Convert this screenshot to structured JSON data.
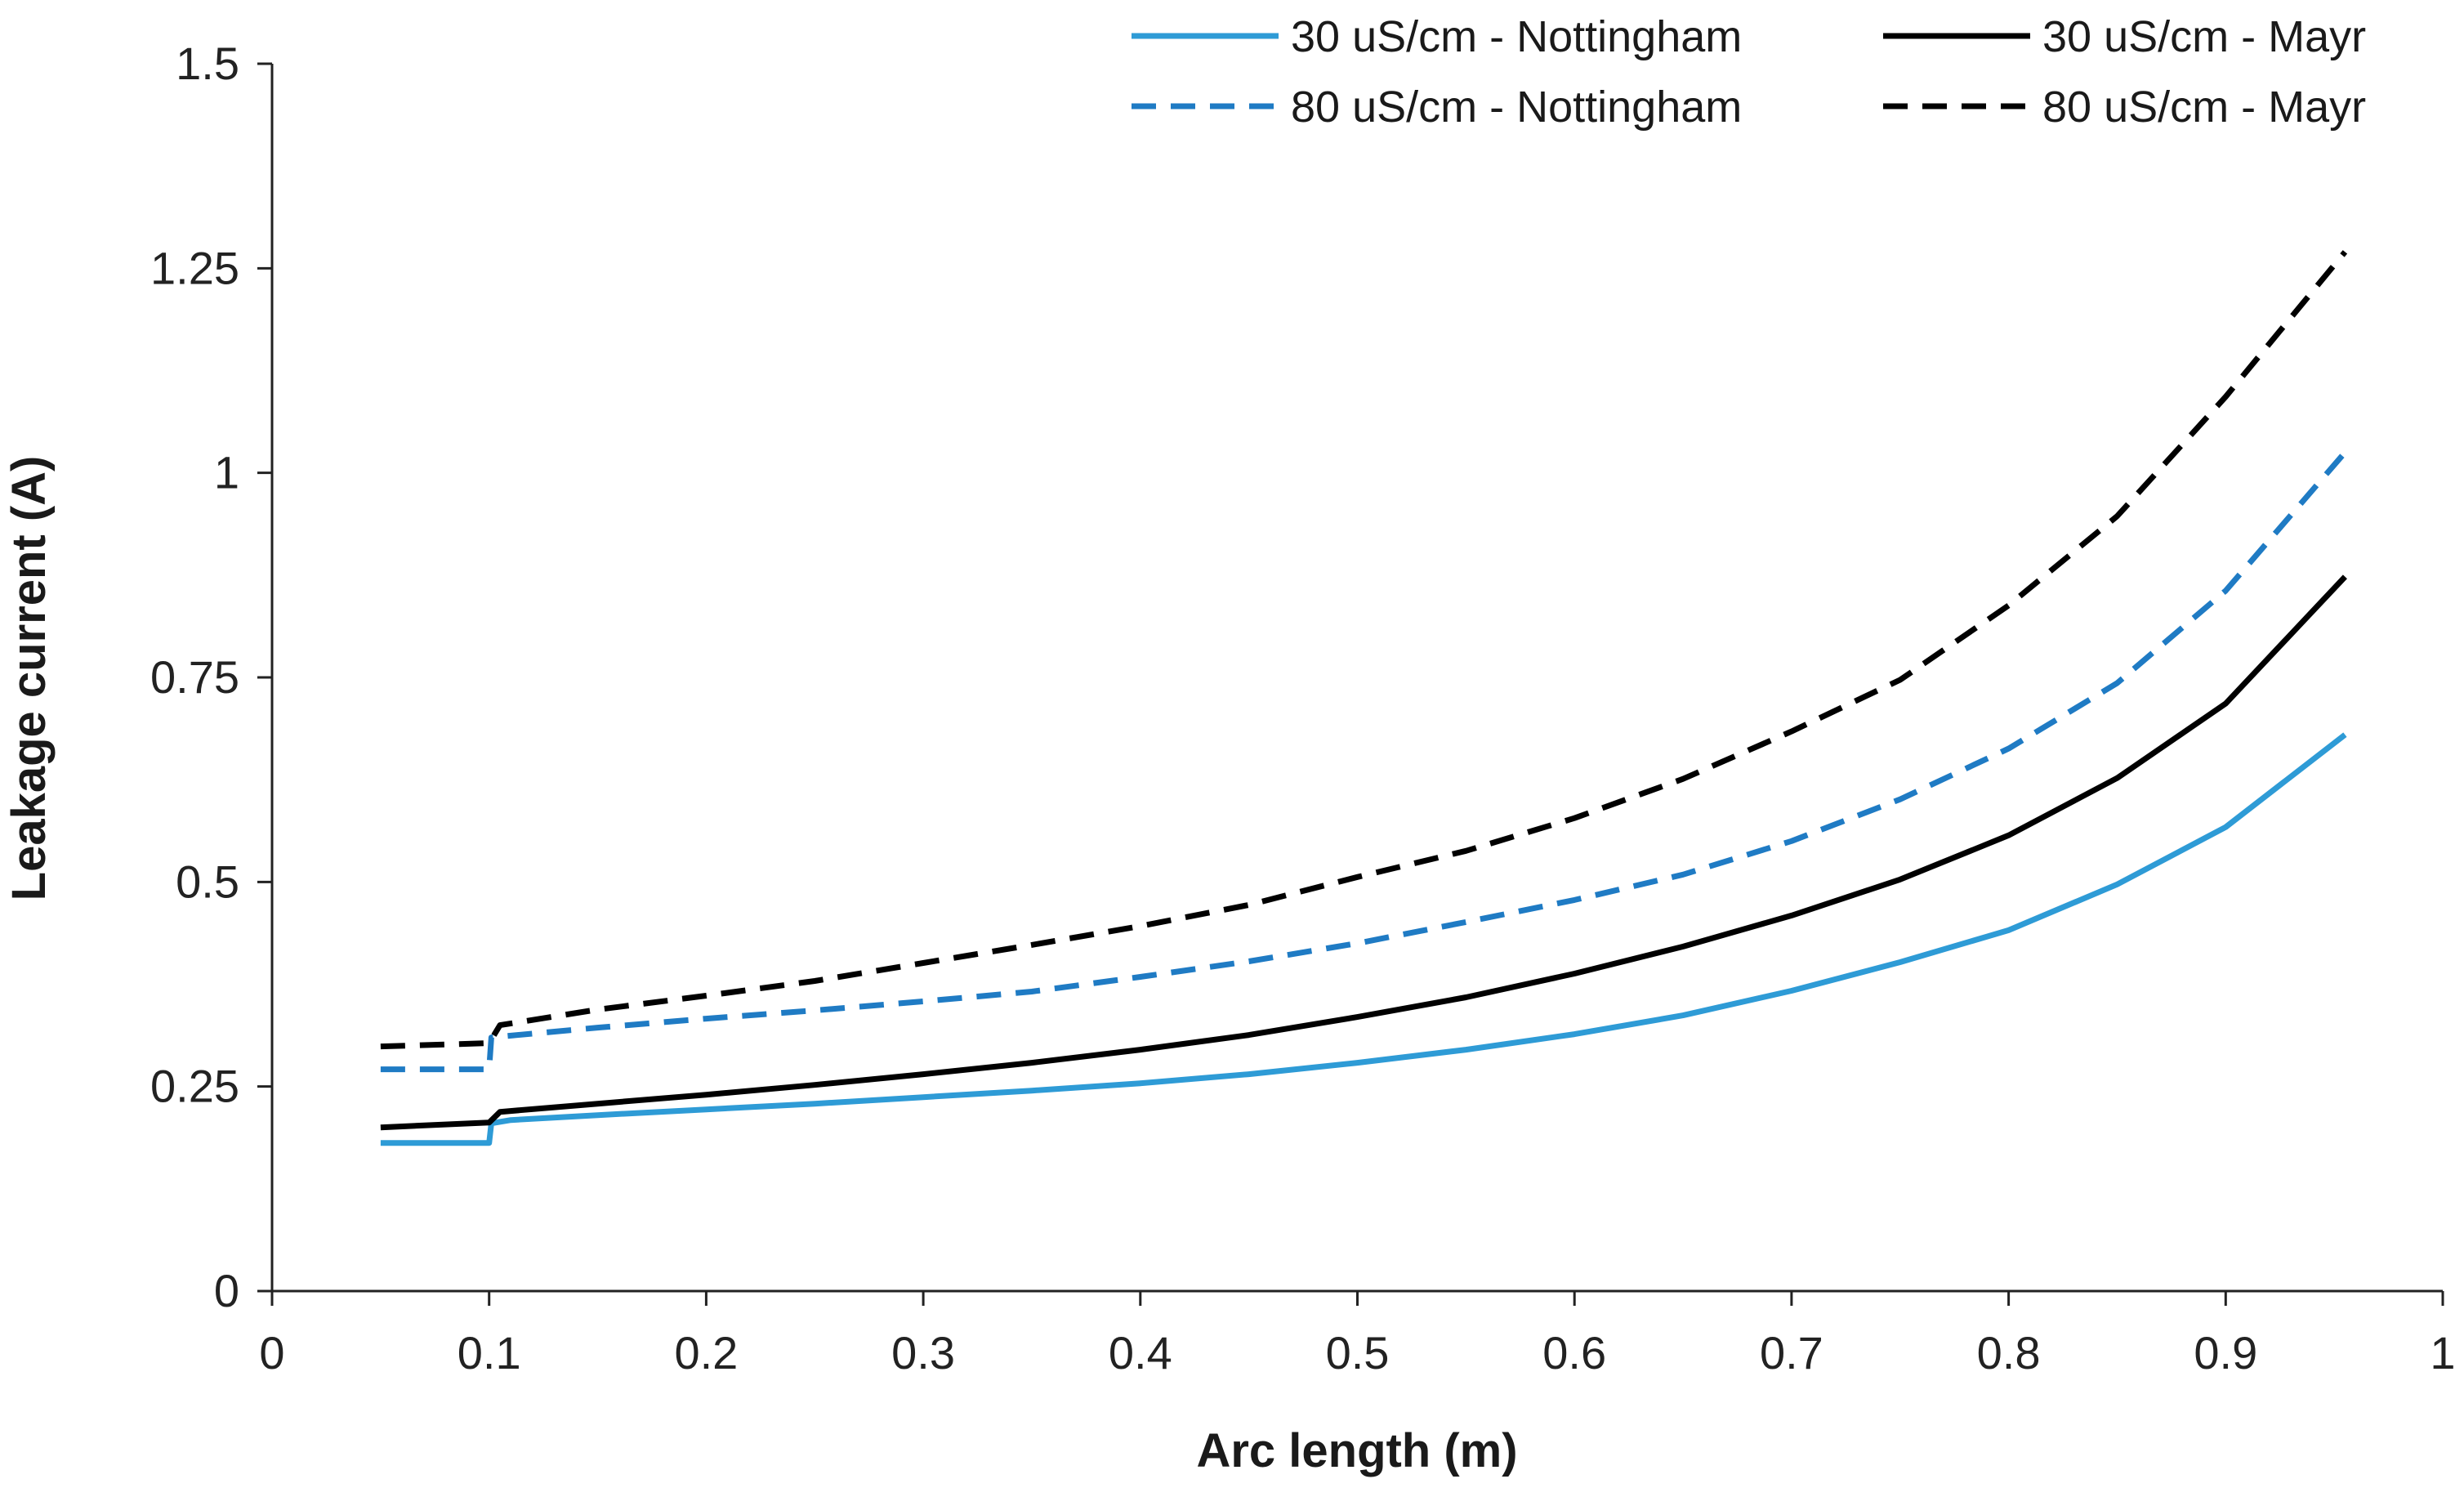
{
  "chart_data": {
    "type": "line",
    "title": "",
    "xlabel": "Arc length (m)",
    "ylabel": "Leakage current (A)",
    "xlim": [
      0,
      1
    ],
    "ylim": [
      0,
      1.5
    ],
    "x_ticks": [
      0,
      0.1,
      0.2,
      0.3,
      0.4,
      0.5,
      0.6,
      0.7,
      0.8,
      0.9,
      1
    ],
    "x_tick_labels": [
      "0",
      "0.1",
      "0.2",
      "0.3",
      "0.4",
      "0.5",
      "0.6",
      "0.7",
      "0.8",
      "0.9",
      "1"
    ],
    "y_ticks": [
      0,
      0.25,
      0.5,
      0.75,
      1,
      1.25,
      1.5
    ],
    "y_tick_labels": [
      "0",
      "0.25",
      "0.5",
      "0.75",
      "1",
      "1.25",
      "1.5"
    ],
    "grid": false,
    "legend_position": "top-right",
    "series": [
      {
        "name": "30 uS/cm - Nottingham",
        "color": "#2e9bd6",
        "dash": "solid",
        "points": [
          [
            0.05,
            0.181
          ],
          [
            0.1,
            0.181
          ],
          [
            0.101,
            0.205
          ],
          [
            0.11,
            0.209
          ],
          [
            0.15,
            0.215
          ],
          [
            0.2,
            0.222
          ],
          [
            0.25,
            0.229
          ],
          [
            0.3,
            0.237
          ],
          [
            0.35,
            0.245
          ],
          [
            0.4,
            0.254
          ],
          [
            0.45,
            0.265
          ],
          [
            0.5,
            0.279
          ],
          [
            0.55,
            0.295
          ],
          [
            0.6,
            0.314
          ],
          [
            0.65,
            0.337
          ],
          [
            0.7,
            0.367
          ],
          [
            0.75,
            0.402
          ],
          [
            0.8,
            0.441
          ],
          [
            0.85,
            0.497
          ],
          [
            0.9,
            0.567
          ],
          [
            0.955,
            0.68
          ]
        ]
      },
      {
        "name": "30 uS/cm - Mayr",
        "color": "#000000",
        "dash": "solid",
        "points": [
          [
            0.05,
            0.2
          ],
          [
            0.1,
            0.206
          ],
          [
            0.105,
            0.219
          ],
          [
            0.15,
            0.229
          ],
          [
            0.2,
            0.24
          ],
          [
            0.25,
            0.252
          ],
          [
            0.3,
            0.265
          ],
          [
            0.35,
            0.279
          ],
          [
            0.4,
            0.295
          ],
          [
            0.45,
            0.313
          ],
          [
            0.5,
            0.335
          ],
          [
            0.55,
            0.359
          ],
          [
            0.6,
            0.388
          ],
          [
            0.65,
            0.421
          ],
          [
            0.7,
            0.459
          ],
          [
            0.75,
            0.503
          ],
          [
            0.8,
            0.557
          ],
          [
            0.85,
            0.627
          ],
          [
            0.9,
            0.718
          ],
          [
            0.955,
            0.873
          ]
        ]
      },
      {
        "name": "80 uS/cm - Nottingham",
        "color": "#1f7bc4",
        "dash": "dashed",
        "points": [
          [
            0.05,
            0.271
          ],
          [
            0.1,
            0.271
          ],
          [
            0.101,
            0.31
          ],
          [
            0.15,
            0.322
          ],
          [
            0.2,
            0.333
          ],
          [
            0.25,
            0.343
          ],
          [
            0.3,
            0.354
          ],
          [
            0.35,
            0.366
          ],
          [
            0.4,
            0.384
          ],
          [
            0.45,
            0.403
          ],
          [
            0.5,
            0.425
          ],
          [
            0.55,
            0.451
          ],
          [
            0.6,
            0.478
          ],
          [
            0.65,
            0.509
          ],
          [
            0.7,
            0.55
          ],
          [
            0.75,
            0.601
          ],
          [
            0.8,
            0.663
          ],
          [
            0.85,
            0.743
          ],
          [
            0.9,
            0.856
          ],
          [
            0.955,
            1.025
          ]
        ]
      },
      {
        "name": "80 uS/cm - Mayr",
        "color": "#000000",
        "dash": "dashed",
        "points": [
          [
            0.05,
            0.299
          ],
          [
            0.1,
            0.303
          ],
          [
            0.105,
            0.325
          ],
          [
            0.15,
            0.344
          ],
          [
            0.2,
            0.361
          ],
          [
            0.25,
            0.379
          ],
          [
            0.3,
            0.401
          ],
          [
            0.35,
            0.423
          ],
          [
            0.4,
            0.446
          ],
          [
            0.45,
            0.472
          ],
          [
            0.5,
            0.506
          ],
          [
            0.55,
            0.538
          ],
          [
            0.6,
            0.578
          ],
          [
            0.65,
            0.626
          ],
          [
            0.7,
            0.684
          ],
          [
            0.75,
            0.747
          ],
          [
            0.8,
            0.838
          ],
          [
            0.85,
            0.947
          ],
          [
            0.9,
            1.093
          ],
          [
            0.955,
            1.27
          ]
        ]
      }
    ]
  }
}
